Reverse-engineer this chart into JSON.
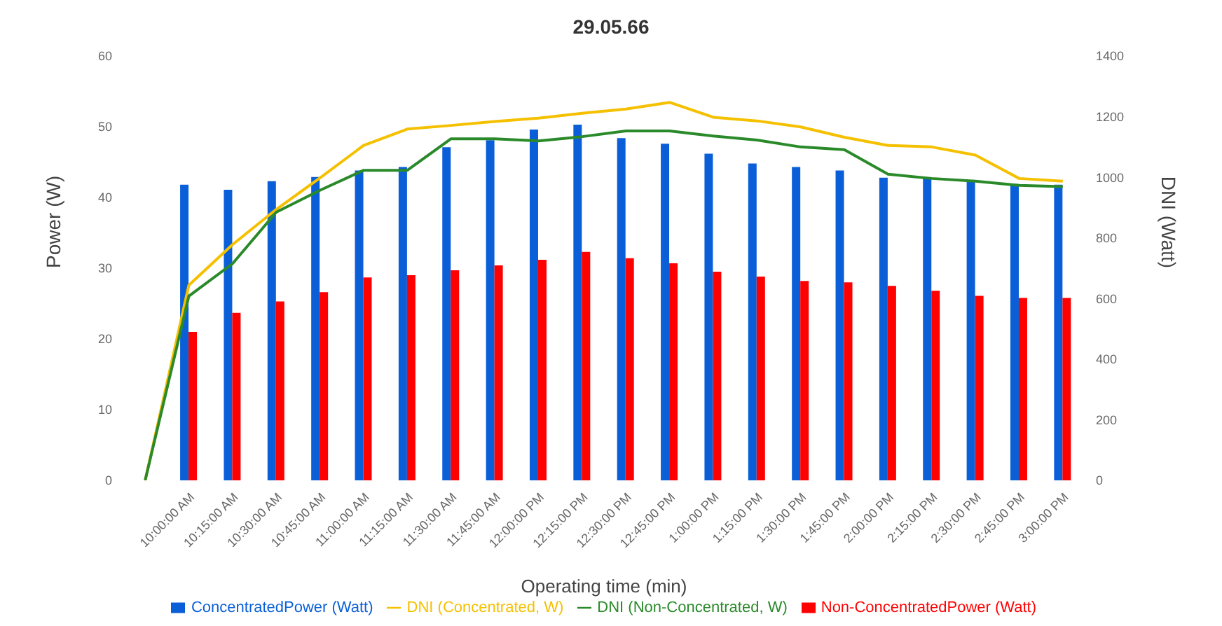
{
  "chart_data": {
    "type": "bar",
    "title": "29.05.66",
    "xlabel": "Operating time (min)",
    "ylabel": "Power (W)",
    "y2label": "DNI (Watt)",
    "categories": [
      null,
      "10:00:00 AM",
      "10:15:00 AM",
      "10:30:00 AM",
      "10:45:00 AM",
      "11:00:00 AM",
      "11:15:00 AM",
      "11:30:00 AM",
      "11:45:00 AM",
      "12:00:00 PM",
      "12:15:00 PM",
      "12:30:00 PM",
      "12:45:00 PM",
      "1:00:00 PM",
      "1:15:00 PM",
      "1:30:00 PM",
      "1:45:00 PM",
      "2:00:00 PM",
      "2:15:00 PM",
      "2:30:00 PM",
      "2:45:00 PM",
      "3:00:00 PM"
    ],
    "series": [
      {
        "name": "ConcentratedPower (Watt)",
        "color": "#0a5fd8",
        "values": [
          null,
          41.8,
          41.1,
          42.3,
          42.9,
          43.8,
          44.3,
          47.1,
          48.1,
          49.6,
          50.3,
          48.4,
          47.6,
          46.2,
          44.8,
          44.3,
          43.8,
          42.8,
          42.8,
          42.3,
          41.9,
          41.8
        ]
      },
      {
        "name": "Non-ConcentratedPower (Watt)",
        "color": "#ff0000",
        "values": [
          null,
          21.0,
          23.7,
          25.3,
          26.6,
          28.7,
          29.0,
          29.7,
          30.4,
          31.2,
          32.3,
          31.4,
          30.7,
          29.5,
          28.8,
          28.2,
          28.0,
          27.5,
          26.8,
          26.1,
          25.8,
          25.8
        ]
      },
      {
        "name": "DNI (Concentrated, W)",
        "type": "line",
        "axis": "y2",
        "color": "#f5c000",
        "values": [
          0,
          644,
          778,
          894,
          998,
          1105,
          1159,
          1171,
          1184,
          1195,
          1211,
          1225,
          1247,
          1198,
          1186,
          1166,
          1132,
          1105,
          1100,
          1073,
          996,
          987
        ]
      },
      {
        "name": "DNI (Non-Concentrated, W)",
        "type": "line",
        "axis": "y2",
        "color": "#2a8a2a",
        "values": [
          0,
          608,
          715,
          885,
          957,
          1023,
          1023,
          1127,
          1127,
          1120,
          1134,
          1153,
          1153,
          1136,
          1123,
          1100,
          1091,
          1010,
          996,
          987,
          973,
          969
        ]
      }
    ],
    "ylim": [
      0,
      60
    ],
    "yticks": [
      0,
      10,
      20,
      30,
      40,
      50,
      60
    ],
    "y2lim": [
      0,
      1400
    ],
    "y2ticks": [
      0,
      200,
      400,
      600,
      800,
      1000,
      1200,
      1400
    ],
    "grid": false,
    "legend": "bottom",
    "marker": "none"
  }
}
